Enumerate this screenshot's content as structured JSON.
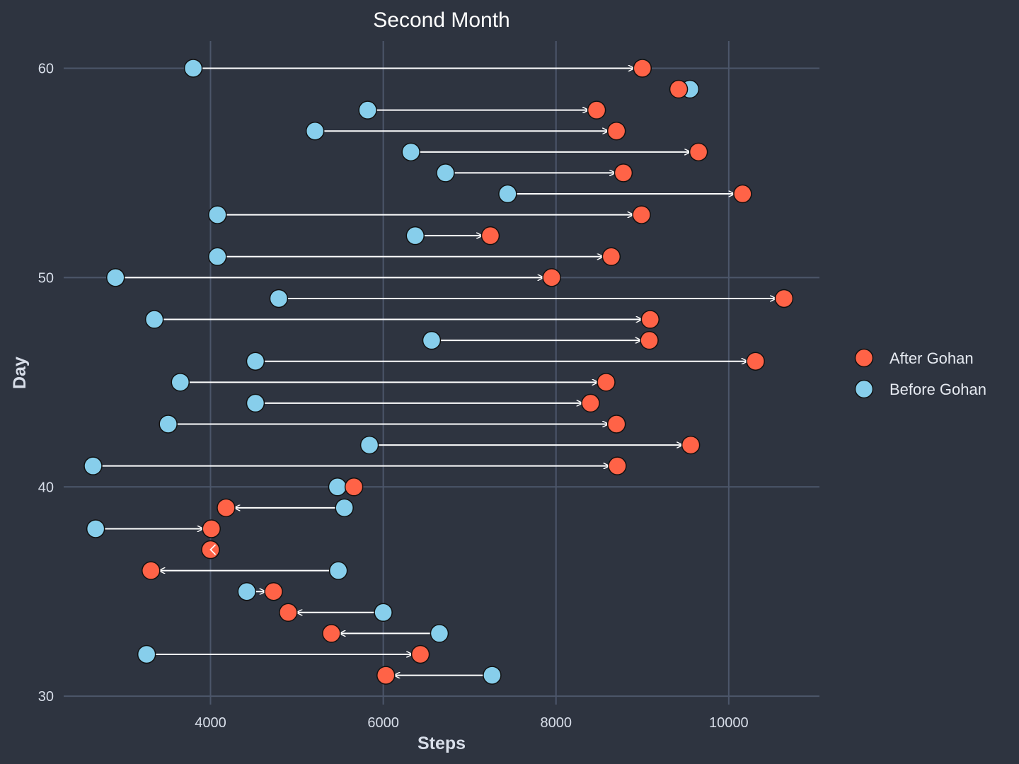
{
  "chart_data": {
    "type": "dumbbell",
    "title": "Second Month",
    "xlabel": "Steps",
    "ylabel": "Day",
    "xlim": [
      2300,
      11050
    ],
    "ylim": [
      29.6,
      61.3
    ],
    "xticks": [
      4000,
      6000,
      8000,
      10000
    ],
    "yticks": [
      30,
      40,
      50,
      60
    ],
    "grid": true,
    "legend_position": "right",
    "series": [
      {
        "name": "After Gohan",
        "color": "#ff6347"
      },
      {
        "name": "Before Gohan",
        "color": "#87ceeb"
      }
    ],
    "points": [
      {
        "day": 31,
        "before": 7260,
        "after": 6030
      },
      {
        "day": 32,
        "before": 3260,
        "after": 6430
      },
      {
        "day": 33,
        "before": 6650,
        "after": 5400
      },
      {
        "day": 34,
        "before": 6000,
        "after": 4900
      },
      {
        "day": 35,
        "before": 4420,
        "after": 4730
      },
      {
        "day": 36,
        "before": 5480,
        "after": 3310
      },
      {
        "day": 37,
        "before": 4000,
        "after": 4000
      },
      {
        "day": 38,
        "before": 2670,
        "after": 4010
      },
      {
        "day": 39,
        "before": 5550,
        "after": 4180
      },
      {
        "day": 40,
        "before": 5470,
        "after": 5660
      },
      {
        "day": 41,
        "before": 2640,
        "after": 8710
      },
      {
        "day": 42,
        "before": 5840,
        "after": 9560
      },
      {
        "day": 43,
        "before": 3510,
        "after": 8700
      },
      {
        "day": 44,
        "before": 4520,
        "after": 8400
      },
      {
        "day": 45,
        "before": 3650,
        "after": 8580
      },
      {
        "day": 46,
        "before": 4520,
        "after": 10310
      },
      {
        "day": 47,
        "before": 6560,
        "after": 9080
      },
      {
        "day": 48,
        "before": 3350,
        "after": 9090
      },
      {
        "day": 49,
        "before": 4790,
        "after": 10640
      },
      {
        "day": 50,
        "before": 2900,
        "after": 7950
      },
      {
        "day": 51,
        "before": 4080,
        "after": 8640
      },
      {
        "day": 52,
        "before": 6370,
        "after": 7240
      },
      {
        "day": 53,
        "before": 4080,
        "after": 8990
      },
      {
        "day": 54,
        "before": 7440,
        "after": 10160
      },
      {
        "day": 55,
        "before": 6720,
        "after": 8780
      },
      {
        "day": 56,
        "before": 6320,
        "after": 9650
      },
      {
        "day": 57,
        "before": 5210,
        "after": 8700
      },
      {
        "day": 58,
        "before": 5820,
        "after": 8470
      },
      {
        "day": 59,
        "before": 9550,
        "after": 9420
      },
      {
        "day": 60,
        "before": 3800,
        "after": 9000
      }
    ]
  }
}
